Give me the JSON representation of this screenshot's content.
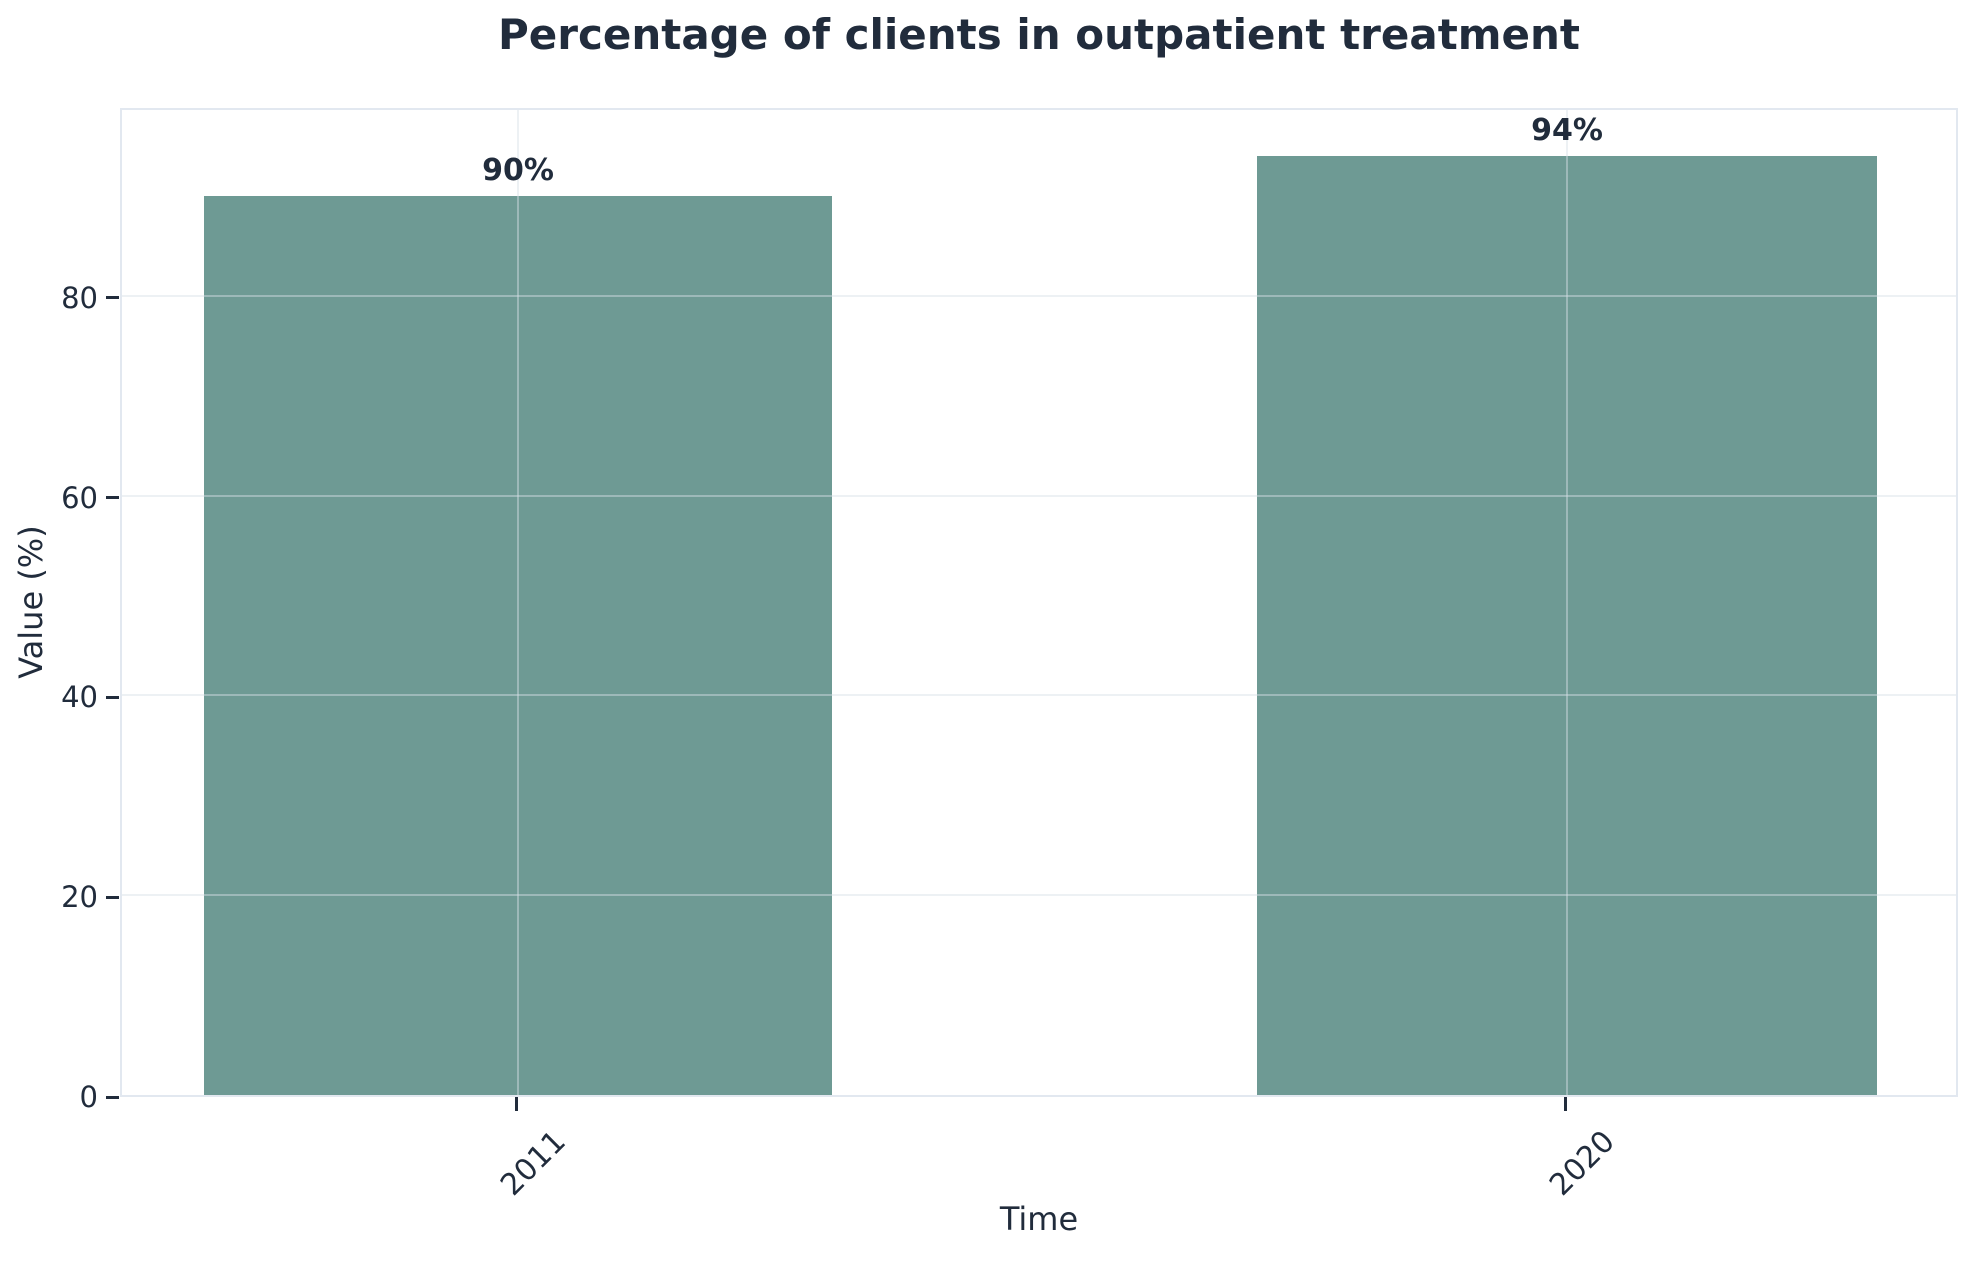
{
  "chart_data": {
    "type": "bar",
    "title": "Percentage of clients in outpatient treatment",
    "xlabel": "Time",
    "ylabel": "Value (%)",
    "categories": [
      "2011",
      "2020"
    ],
    "values": [
      90,
      94
    ],
    "bar_labels": [
      "90%",
      "94%"
    ],
    "yticks": [
      0,
      20,
      40,
      60,
      80
    ],
    "ylim": [
      0,
      99
    ],
    "grid": true,
    "legend": false,
    "colors": {
      "bar": "#6E9A94",
      "text": "#212C3C",
      "plot_border": "#E2E8F0",
      "gridline": "rgba(214,223,231,0.45)",
      "background": "#FFFFFF"
    }
  }
}
